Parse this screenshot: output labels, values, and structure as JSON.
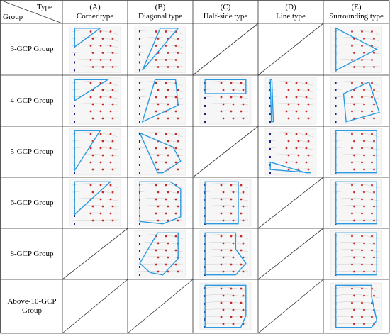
{
  "header": {
    "type_label": "Type",
    "group_label": "Group",
    "columns": [
      {
        "letter": "(A)",
        "name": "Corner type"
      },
      {
        "letter": "(B)",
        "name": "Diagonal type"
      },
      {
        "letter": "(C)",
        "name": "Half-side type"
      },
      {
        "letter": "(D)",
        "name": "Line type"
      },
      {
        "letter": "(E)",
        "name": "Surrounding type"
      }
    ]
  },
  "table": {
    "rows": [
      "3-GCP Group",
      "4-GCP Group",
      "5-GCP Group",
      "6-GCP Group",
      "8-GCP Group",
      "Above-10-GCP Group"
    ]
  }
}
